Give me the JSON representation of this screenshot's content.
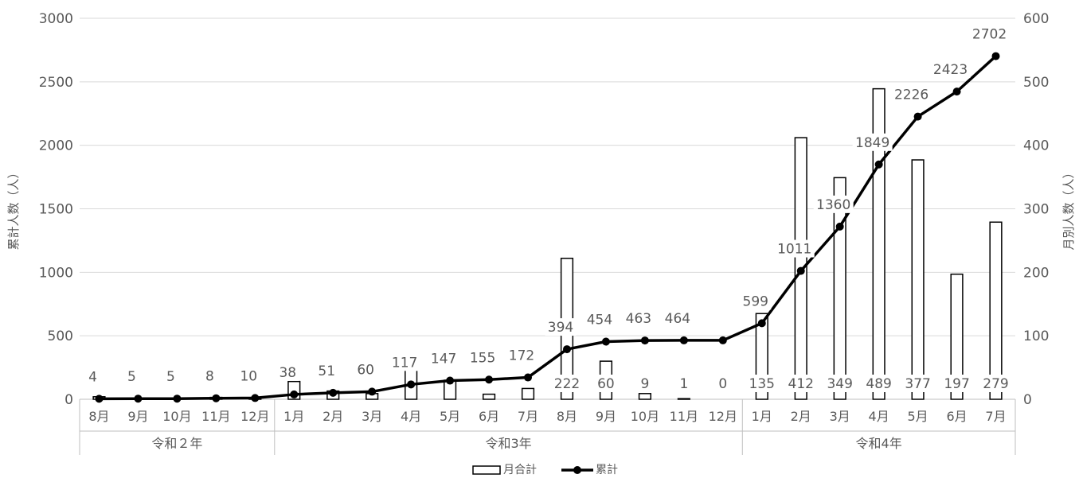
{
  "chart_data": {
    "type": "bar",
    "categories": [
      "8月",
      "9月",
      "10月",
      "11月",
      "12月",
      "1月",
      "2月",
      "3月",
      "4月",
      "5月",
      "6月",
      "7月",
      "8月",
      "9月",
      "10月",
      "11月",
      "12月",
      "1月",
      "2月",
      "3月",
      "4月",
      "5月",
      "6月",
      "7月"
    ],
    "groups": [
      {
        "label": "令和２年",
        "start": 0,
        "end": 4
      },
      {
        "label": "令和3年",
        "start": 5,
        "end": 16
      },
      {
        "label": "令和4年",
        "start": 17,
        "end": 23
      }
    ],
    "series": [
      {
        "name": "月合計",
        "type": "bar",
        "axis": "right",
        "values": [
          4,
          1,
          0,
          3,
          2,
          28,
          13,
          9,
          57,
          30,
          8,
          17,
          222,
          60,
          9,
          1,
          0,
          135,
          412,
          349,
          489,
          377,
          197,
          279
        ],
        "labels": [
          "",
          "",
          "",
          "",
          "",
          "",
          "",
          "",
          "",
          "",
          "",
          "",
          "222",
          "60",
          "9",
          "1",
          "0",
          "135",
          "412",
          "349",
          "489",
          "377",
          "197",
          "279"
        ]
      },
      {
        "name": "累計",
        "type": "line",
        "axis": "left",
        "values": [
          4,
          5,
          5,
          8,
          10,
          38,
          51,
          60,
          117,
          147,
          155,
          172,
          394,
          454,
          463,
          464,
          464,
          599,
          1011,
          1360,
          1849,
          2226,
          2423,
          2702
        ],
        "labels": [
          "4",
          "5",
          "5",
          "8",
          "10",
          "38",
          "51",
          "60",
          "117",
          "147",
          "155",
          "172",
          "394",
          "454",
          "463",
          "464",
          "",
          "599",
          "1011",
          "1360",
          "1849",
          "2226",
          "2423",
          "2702"
        ]
      }
    ],
    "y_left": {
      "label": "累計人数（人）",
      "ticks": [
        "0",
        "500",
        "1000",
        "1500",
        "2000",
        "2500",
        "3000"
      ],
      "min": 0,
      "max": 3000
    },
    "y_right": {
      "label": "月別人数（人）",
      "ticks": [
        "0",
        "100",
        "200",
        "300",
        "400",
        "500",
        "600"
      ],
      "min": 0,
      "max": 600
    },
    "grid": true,
    "legend_position": "bottom",
    "colors": {
      "bar_fill": "#ffffff",
      "bar_stroke": "#000000",
      "line": "#000000",
      "grid": "#d9d9d9",
      "text": "#595959",
      "axis": "#bfbfbf"
    }
  }
}
